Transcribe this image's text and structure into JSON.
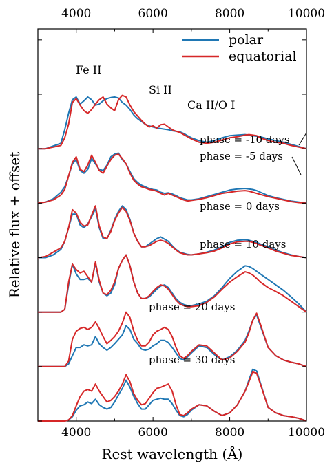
{
  "chart_data": {
    "type": "line",
    "title": "",
    "xlabel": "Rest wavelength (Å)",
    "ylabel": "Relative flux + offset",
    "xlim": [
      3000,
      10000
    ],
    "x_ticks": [
      4000,
      6000,
      8000,
      10000
    ],
    "x_tick_labels": [
      "4000",
      "6000",
      "8000",
      "10000"
    ],
    "top_axis_tick_labels": [
      "4000",
      "6000",
      "8000",
      "10000"
    ],
    "ylim": [
      0,
      7.2
    ],
    "y_tick_labels_shown": false,
    "grid": false,
    "legend": {
      "position": "top-right",
      "entries": [
        {
          "name": "polar",
          "color": "#1f77b4"
        },
        {
          "name": "equatorial",
          "color": "#d62728"
        }
      ]
    },
    "line_annotations": [
      {
        "text": "Fe II",
        "x": 4350
      },
      {
        "text": "Si II",
        "x": 6250
      },
      {
        "text": "Ca II/O I",
        "x": 7700
      }
    ],
    "phase_labels": [
      "phase = -10 days",
      "phase = -5 days",
      "phase = 0 days",
      "phase = 10 days",
      "phase = 20 days",
      "phase = 30 days"
    ],
    "x": [
      3000,
      3200,
      3400,
      3600,
      3700,
      3800,
      3900,
      4000,
      4100,
      4200,
      4300,
      4400,
      4500,
      4600,
      4700,
      4800,
      4900,
      5000,
      5100,
      5200,
      5300,
      5400,
      5500,
      5600,
      5700,
      5800,
      5900,
      6000,
      6100,
      6200,
      6300,
      6400,
      6500,
      6600,
      6700,
      6800,
      6900,
      7000,
      7200,
      7400,
      7600,
      7800,
      8000,
      8200,
      8400,
      8500,
      8600,
      8700,
      8800,
      9000,
      9200,
      9400,
      9600,
      9800,
      10000
    ],
    "series": [
      {
        "name": "polar",
        "phase": "phase = -10 days",
        "offset": 5.0,
        "color": "#1f77b4",
        "values": [
          0,
          0,
          0.05,
          0.1,
          0.35,
          0.65,
          0.9,
          0.95,
          0.82,
          0.88,
          0.95,
          0.9,
          0.8,
          0.82,
          0.88,
          0.92,
          0.94,
          0.95,
          0.93,
          0.85,
          0.8,
          0.72,
          0.62,
          0.55,
          0.5,
          0.45,
          0.42,
          0.4,
          0.38,
          0.37,
          0.36,
          0.35,
          0.33,
          0.32,
          0.31,
          0.28,
          0.24,
          0.2,
          0.15,
          0.12,
          0.15,
          0.2,
          0.24,
          0.25,
          0.26,
          0.25,
          0.24,
          0.23,
          0.22,
          0.18,
          0.15,
          0.12,
          0.08,
          0.04,
          0.0
        ]
      },
      {
        "name": "equatorial",
        "phase": "phase = -10 days",
        "offset": 5.0,
        "color": "#d62728",
        "values": [
          0,
          0,
          0.03,
          0.06,
          0.2,
          0.45,
          0.85,
          0.92,
          0.8,
          0.7,
          0.65,
          0.72,
          0.82,
          0.9,
          0.95,
          0.82,
          0.75,
          0.7,
          0.9,
          0.98,
          0.95,
          0.8,
          0.68,
          0.6,
          0.52,
          0.45,
          0.4,
          0.42,
          0.38,
          0.44,
          0.45,
          0.4,
          0.35,
          0.32,
          0.3,
          0.26,
          0.22,
          0.18,
          0.12,
          0.1,
          0.12,
          0.16,
          0.2,
          0.22,
          0.25,
          0.26,
          0.25,
          0.24,
          0.2,
          0.15,
          0.12,
          0.1,
          0.06,
          0.03,
          0.0
        ]
      },
      {
        "name": "polar",
        "phase": "phase = -5 days",
        "offset": 4.0,
        "color": "#1f77b4",
        "values": [
          0,
          0.02,
          0.08,
          0.2,
          0.3,
          0.5,
          0.72,
          0.8,
          0.6,
          0.55,
          0.62,
          0.82,
          0.72,
          0.62,
          0.6,
          0.7,
          0.85,
          0.9,
          0.92,
          0.8,
          0.72,
          0.58,
          0.45,
          0.38,
          0.33,
          0.3,
          0.27,
          0.25,
          0.24,
          0.2,
          0.18,
          0.19,
          0.17,
          0.14,
          0.1,
          0.08,
          0.06,
          0.06,
          0.08,
          0.12,
          0.16,
          0.2,
          0.24,
          0.26,
          0.27,
          0.26,
          0.25,
          0.23,
          0.2,
          0.14,
          0.1,
          0.07,
          0.04,
          0.02,
          0.0
        ]
      },
      {
        "name": "equatorial",
        "phase": "phase = -5 days",
        "offset": 4.0,
        "color": "#d62728",
        "values": [
          0,
          0.02,
          0.06,
          0.15,
          0.25,
          0.5,
          0.75,
          0.85,
          0.62,
          0.58,
          0.7,
          0.88,
          0.75,
          0.6,
          0.55,
          0.68,
          0.8,
          0.88,
          0.9,
          0.82,
          0.72,
          0.55,
          0.42,
          0.35,
          0.3,
          0.28,
          0.25,
          0.24,
          0.22,
          0.18,
          0.15,
          0.18,
          0.15,
          0.12,
          0.09,
          0.06,
          0.04,
          0.05,
          0.07,
          0.1,
          0.14,
          0.18,
          0.2,
          0.22,
          0.23,
          0.22,
          0.2,
          0.18,
          0.16,
          0.12,
          0.09,
          0.06,
          0.03,
          0.01,
          0.0
        ]
      },
      {
        "name": "polar",
        "phase": "phase = 0 days",
        "offset": 3.0,
        "color": "#1f77b4",
        "values": [
          0,
          0,
          0.05,
          0.15,
          0.3,
          0.55,
          0.8,
          0.8,
          0.6,
          0.55,
          0.62,
          0.75,
          0.9,
          0.55,
          0.35,
          0.35,
          0.5,
          0.7,
          0.85,
          0.95,
          0.88,
          0.7,
          0.45,
          0.3,
          0.2,
          0.2,
          0.25,
          0.3,
          0.35,
          0.38,
          0.34,
          0.3,
          0.22,
          0.15,
          0.1,
          0.08,
          0.06,
          0.05,
          0.07,
          0.1,
          0.14,
          0.2,
          0.28,
          0.32,
          0.33,
          0.32,
          0.3,
          0.28,
          0.25,
          0.2,
          0.14,
          0.09,
          0.05,
          0.02,
          0.0
        ]
      },
      {
        "name": "equatorial",
        "phase": "phase = 0 days",
        "offset": 3.0,
        "color": "#d62728",
        "values": [
          0,
          0.02,
          0.1,
          0.18,
          0.3,
          0.55,
          0.88,
          0.82,
          0.65,
          0.58,
          0.6,
          0.78,
          0.95,
          0.58,
          0.38,
          0.35,
          0.48,
          0.68,
          0.82,
          0.92,
          0.85,
          0.68,
          0.45,
          0.3,
          0.2,
          0.2,
          0.22,
          0.26,
          0.3,
          0.32,
          0.3,
          0.26,
          0.2,
          0.14,
          0.09,
          0.07,
          0.05,
          0.05,
          0.07,
          0.09,
          0.12,
          0.18,
          0.25,
          0.29,
          0.3,
          0.3,
          0.28,
          0.26,
          0.23,
          0.18,
          0.12,
          0.08,
          0.04,
          0.02,
          0.0
        ]
      },
      {
        "name": "polar",
        "phase": "phase = 10 days",
        "offset": 2.0,
        "color": "#1f77b4",
        "values": [
          0,
          0,
          0,
          0,
          0.05,
          0.5,
          0.88,
          0.7,
          0.6,
          0.6,
          0.62,
          0.55,
          0.9,
          0.55,
          0.35,
          0.3,
          0.35,
          0.5,
          0.8,
          0.95,
          1.05,
          0.85,
          0.55,
          0.35,
          0.25,
          0.25,
          0.28,
          0.35,
          0.42,
          0.48,
          0.5,
          0.45,
          0.35,
          0.25,
          0.18,
          0.14,
          0.12,
          0.12,
          0.15,
          0.2,
          0.3,
          0.45,
          0.62,
          0.75,
          0.85,
          0.84,
          0.8,
          0.75,
          0.7,
          0.6,
          0.5,
          0.4,
          0.28,
          0.15,
          0.0
        ]
      },
      {
        "name": "equatorial",
        "phase": "phase = 10 days",
        "offset": 2.0,
        "color": "#d62728",
        "values": [
          0,
          0,
          0,
          0,
          0.05,
          0.55,
          0.88,
          0.78,
          0.72,
          0.75,
          0.65,
          0.55,
          0.92,
          0.58,
          0.35,
          0.32,
          0.4,
          0.55,
          0.8,
          0.95,
          1.05,
          0.85,
          0.55,
          0.35,
          0.25,
          0.25,
          0.3,
          0.38,
          0.45,
          0.5,
          0.48,
          0.42,
          0.32,
          0.22,
          0.15,
          0.12,
          0.1,
          0.1,
          0.12,
          0.18,
          0.28,
          0.42,
          0.55,
          0.65,
          0.74,
          0.72,
          0.68,
          0.62,
          0.55,
          0.45,
          0.38,
          0.3,
          0.2,
          0.1,
          0.0
        ]
      },
      {
        "name": "polar",
        "phase": "phase = 20 days",
        "offset": 1.0,
        "color": "#1f77b4",
        "values": [
          0,
          0,
          0,
          0,
          0,
          0.05,
          0.2,
          0.35,
          0.35,
          0.4,
          0.38,
          0.4,
          0.55,
          0.42,
          0.35,
          0.3,
          0.35,
          0.42,
          0.5,
          0.58,
          0.75,
          0.68,
          0.5,
          0.42,
          0.32,
          0.3,
          0.32,
          0.38,
          0.42,
          0.48,
          0.48,
          0.44,
          0.35,
          0.25,
          0.15,
          0.12,
          0.18,
          0.25,
          0.38,
          0.35,
          0.22,
          0.12,
          0.18,
          0.3,
          0.48,
          0.65,
          0.85,
          0.95,
          0.75,
          0.35,
          0.2,
          0.12,
          0.08,
          0.05,
          0.0
        ]
      },
      {
        "name": "equatorial",
        "phase": "phase = 20 days",
        "offset": 1.0,
        "color": "#d62728",
        "values": [
          0,
          0,
          0,
          0,
          0,
          0.1,
          0.5,
          0.65,
          0.7,
          0.72,
          0.68,
          0.72,
          0.82,
          0.7,
          0.55,
          0.42,
          0.48,
          0.55,
          0.65,
          0.8,
          1.0,
          0.9,
          0.65,
          0.48,
          0.38,
          0.38,
          0.45,
          0.58,
          0.65,
          0.68,
          0.72,
          0.68,
          0.55,
          0.35,
          0.2,
          0.15,
          0.2,
          0.28,
          0.4,
          0.38,
          0.25,
          0.12,
          0.16,
          0.28,
          0.45,
          0.62,
          0.85,
          0.98,
          0.78,
          0.35,
          0.2,
          0.12,
          0.08,
          0.05,
          0.0
        ]
      },
      {
        "name": "polar",
        "phase": "phase = 30 days",
        "offset": 0.0,
        "color": "#1f77b4",
        "values": [
          0,
          0,
          0,
          0,
          0,
          0.02,
          0.08,
          0.2,
          0.28,
          0.3,
          0.35,
          0.32,
          0.4,
          0.3,
          0.25,
          0.22,
          0.25,
          0.35,
          0.48,
          0.6,
          0.75,
          0.62,
          0.45,
          0.32,
          0.22,
          0.22,
          0.3,
          0.38,
          0.4,
          0.42,
          0.4,
          0.4,
          0.32,
          0.2,
          0.1,
          0.08,
          0.12,
          0.2,
          0.3,
          0.28,
          0.18,
          0.1,
          0.15,
          0.3,
          0.55,
          0.75,
          0.95,
          0.92,
          0.7,
          0.25,
          0.15,
          0.1,
          0.08,
          0.05,
          0.0
        ]
      },
      {
        "name": "equatorial",
        "phase": "phase = 30 days",
        "offset": 0.0,
        "color": "#d62728",
        "values": [
          0,
          0,
          0,
          0,
          0,
          0.02,
          0.1,
          0.28,
          0.45,
          0.55,
          0.58,
          0.55,
          0.68,
          0.55,
          0.45,
          0.35,
          0.38,
          0.45,
          0.55,
          0.68,
          0.85,
          0.72,
          0.5,
          0.38,
          0.3,
          0.32,
          0.42,
          0.52,
          0.6,
          0.62,
          0.65,
          0.68,
          0.55,
          0.3,
          0.12,
          0.1,
          0.15,
          0.22,
          0.3,
          0.28,
          0.18,
          0.1,
          0.15,
          0.3,
          0.55,
          0.72,
          0.9,
          0.88,
          0.68,
          0.25,
          0.15,
          0.1,
          0.08,
          0.05,
          0.0
        ]
      }
    ]
  }
}
